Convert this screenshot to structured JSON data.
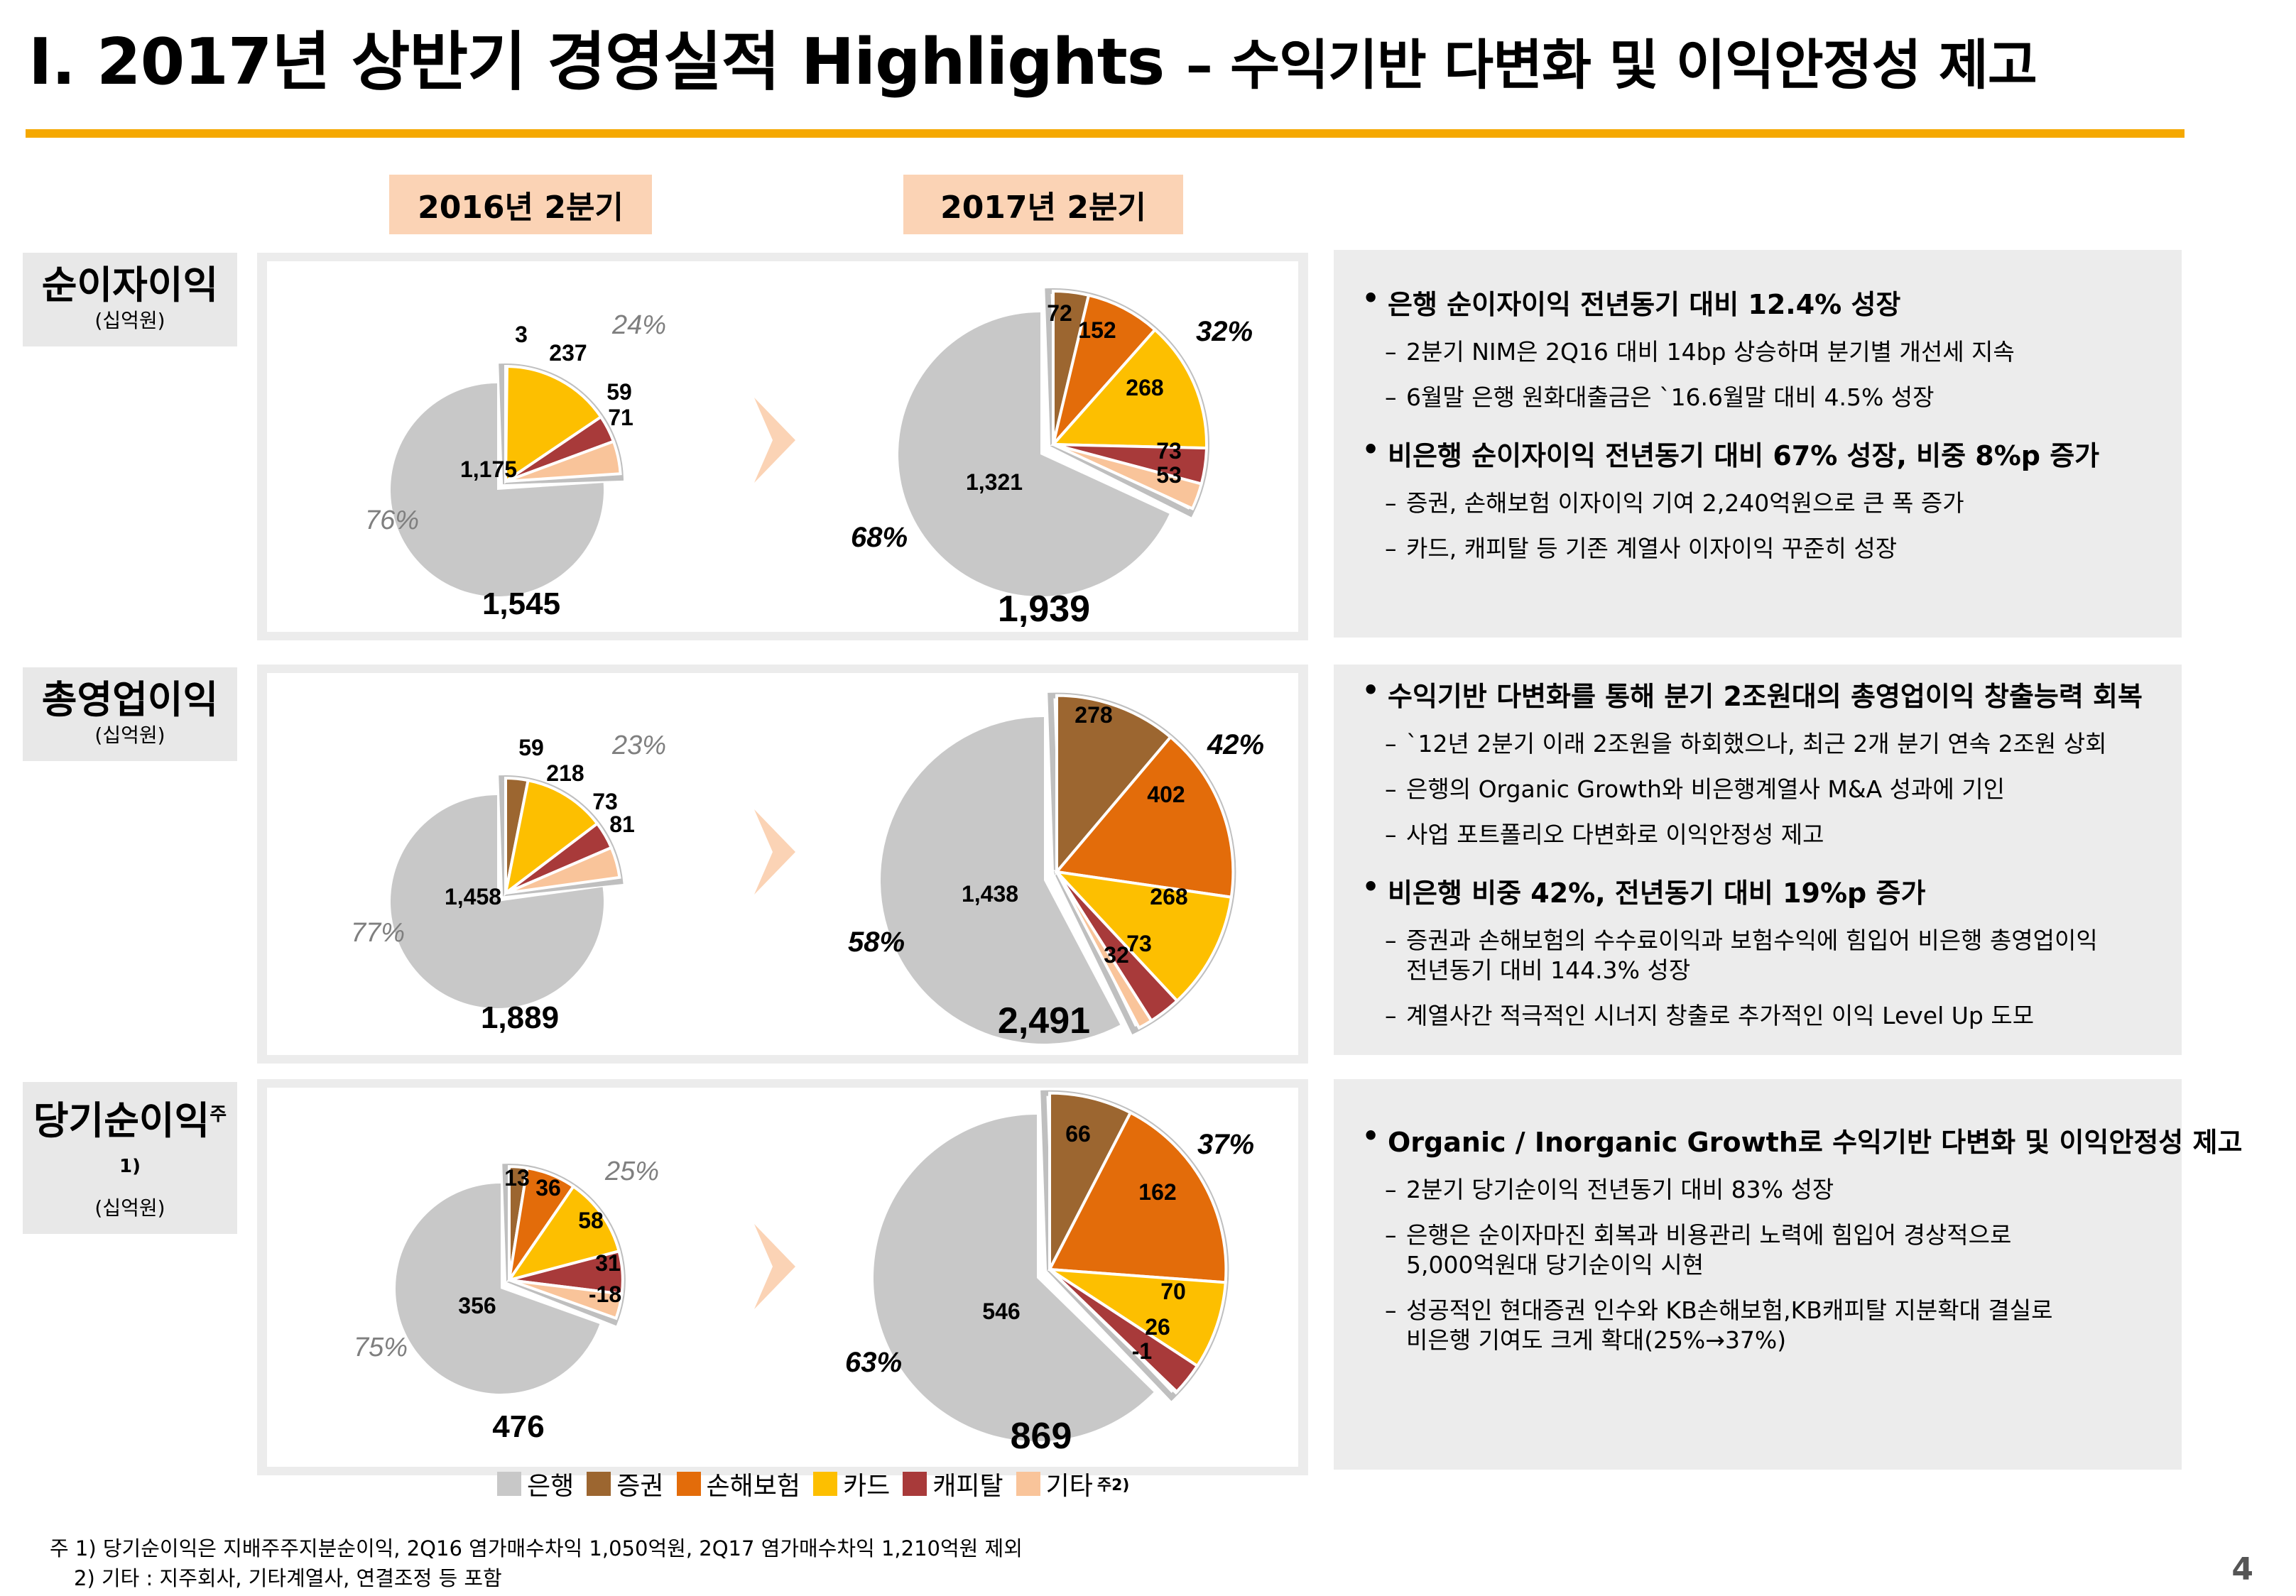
{
  "title": {
    "main": "Ⅰ. 2017년 상반기 경영실적 Highlights",
    "sub": "– 수익기반 다변화 및 이익안정성 제고"
  },
  "periods": [
    "2016년  2분기",
    "2017년  2분기"
  ],
  "colors": {
    "은행": "#c8c8c8",
    "증권": "#9c6630",
    "손해보험": "#e36c0a",
    "카드": "#fdbf00",
    "캐피탈": "#a83a3a",
    "기타": "#f9c49a",
    "accent": "#f5a800",
    "arrow": "#fbd3b5"
  },
  "sections": [
    {
      "label": "순이자이익",
      "unit": "(십억원)",
      "note": ""
    },
    {
      "label": "총영업이익",
      "unit": "(십억원)",
      "note": ""
    },
    {
      "label": "당기순이익",
      "unit": "(십억원)",
      "note": "주1)"
    }
  ],
  "chart_data": [
    {
      "type": "pie",
      "section": "순이자이익",
      "period": "2016년  2분기",
      "categories": [
        "은행",
        "증권",
        "손해보험",
        "카드",
        "캐피탈",
        "기타"
      ],
      "values": [
        1175,
        3,
        null,
        237,
        59,
        71
      ],
      "labels": [
        "1,175",
        "3",
        "",
        "237",
        "59",
        "71"
      ],
      "total": "1,545",
      "bank_share": "76%",
      "nonbank_share": "24%"
    },
    {
      "type": "pie",
      "section": "순이자이익",
      "period": "2017년  2분기",
      "categories": [
        "은행",
        "증권",
        "손해보험",
        "카드",
        "캐피탈",
        "기타"
      ],
      "values": [
        1321,
        72,
        152,
        268,
        73,
        53
      ],
      "labels": [
        "1,321",
        "72",
        "152",
        "268",
        "73",
        "53"
      ],
      "total": "1,939",
      "bank_share": "68%",
      "nonbank_share": "32%"
    },
    {
      "type": "pie",
      "section": "총영업이익",
      "period": "2016년  2분기",
      "categories": [
        "은행",
        "증권",
        "손해보험",
        "카드",
        "캐피탈",
        "기타"
      ],
      "values": [
        1458,
        59,
        null,
        218,
        73,
        81
      ],
      "labels": [
        "1,458",
        "59",
        "",
        "218",
        "73",
        "81"
      ],
      "total": "1,889",
      "bank_share": "77%",
      "nonbank_share": "23%"
    },
    {
      "type": "pie",
      "section": "총영업이익",
      "period": "2017년  2분기",
      "categories": [
        "은행",
        "증권",
        "손해보험",
        "카드",
        "캐피탈",
        "기타"
      ],
      "values": [
        1438,
        278,
        402,
        268,
        73,
        32
      ],
      "labels": [
        "1,438",
        "278",
        "402",
        "268",
        "73",
        "32"
      ],
      "total": "2,491",
      "bank_share": "58%",
      "nonbank_share": "42%"
    },
    {
      "type": "pie",
      "section": "당기순이익",
      "period": "2016년  2분기",
      "categories": [
        "은행",
        "증권",
        "손해보험",
        "카드",
        "캐피탈",
        "기타"
      ],
      "values": [
        356,
        13,
        36,
        58,
        31,
        -18
      ],
      "labels": [
        "356",
        "13",
        "36",
        "58",
        "31",
        "-18"
      ],
      "total": "476",
      "bank_share": "75%",
      "nonbank_share": "25%"
    },
    {
      "type": "pie",
      "section": "당기순이익",
      "period": "2017년  2분기",
      "categories": [
        "은행",
        "증권",
        "손해보험",
        "카드",
        "캐피탈",
        "기타"
      ],
      "values": [
        546,
        66,
        162,
        70,
        26,
        -1
      ],
      "labels": [
        "546",
        "66",
        "162",
        "70",
        "26",
        "-1"
      ],
      "total": "869",
      "bank_share": "63%",
      "nonbank_share": "37%"
    }
  ],
  "text_boxes": [
    {
      "items": [
        {
          "kind": "bullet",
          "text": "은행 순이자이익 전년동기 대비 12.4% 성장"
        },
        {
          "kind": "dash",
          "text": "2분기 NIM은 2Q16 대비 14bp 상승하며 분기별 개선세 지속"
        },
        {
          "kind": "dash",
          "text": "6월말 은행 원화대출금은 `16.6월말 대비 4.5% 성장"
        },
        {
          "kind": "bullet",
          "text": "비은행 순이자이익 전년동기 대비 67% 성장, 비중 8%p 증가"
        },
        {
          "kind": "dash",
          "text": "증권, 손해보험 이자이익 기여 2,240억원으로 큰 폭 증가"
        },
        {
          "kind": "dash",
          "text": "카드, 캐피탈 등 기존 계열사 이자이익 꾸준히 성장"
        }
      ]
    },
    {
      "items": [
        {
          "kind": "bullet",
          "text": "수익기반 다변화를 통해 분기 2조원대의 총영업이익 창출능력 회복"
        },
        {
          "kind": "dash",
          "text": "`12년 2분기 이래 2조원을 하회했으나, 최근 2개 분기 연속 2조원 상회"
        },
        {
          "kind": "dash",
          "text": "은행의 Organic Growth와 비은행계열사 M&A 성과에 기인"
        },
        {
          "kind": "dash",
          "text": "사업 포트폴리오 다변화로 이익안정성 제고"
        },
        {
          "kind": "bullet",
          "text": "비은행 비중 42%, 전년동기 대비 19%p 증가"
        },
        {
          "kind": "dash",
          "text": "증권과 손해보험의 수수료이익과 보험수익에 힘입어 비은행 총영업이익",
          "text2": "전년동기 대비 144.3% 성장"
        },
        {
          "kind": "dash",
          "text": "계열사간 적극적인 시너지 창출로 추가적인 이익 Level Up 도모"
        }
      ]
    },
    {
      "items": [
        {
          "kind": "bullet",
          "text": "Organic / Inorganic Growth로 수익기반 다변화 및 이익안정성 제고"
        },
        {
          "kind": "dash",
          "text": "2분기 당기순이익 전년동기 대비 83% 성장"
        },
        {
          "kind": "dash",
          "text": "은행은 순이자마진 회복과 비용관리 노력에 힘입어 경상적으로",
          "text2": "5,000억원대 당기순이익 시현"
        },
        {
          "kind": "dash",
          "text": "성공적인 현대증권 인수와 KB손해보험,KB캐피탈 지분확대 결실로",
          "text2": "비은행 기여도 크게 확대(25%→37%)"
        }
      ]
    }
  ],
  "legend": [
    "은행",
    "증권",
    "손해보험",
    "카드",
    "캐피탈",
    "기타"
  ],
  "legend_note": "주2)",
  "footnotes": [
    "주 1) 당기순이익은 지배주주지분순이익, 2Q16 염가매수차익 1,050억원, 2Q17 염가매수차익 1,210억원 제외",
    "2) 기타 : 지주회사, 기타계열사, 연결조정 등 포함"
  ],
  "page_number": "4"
}
